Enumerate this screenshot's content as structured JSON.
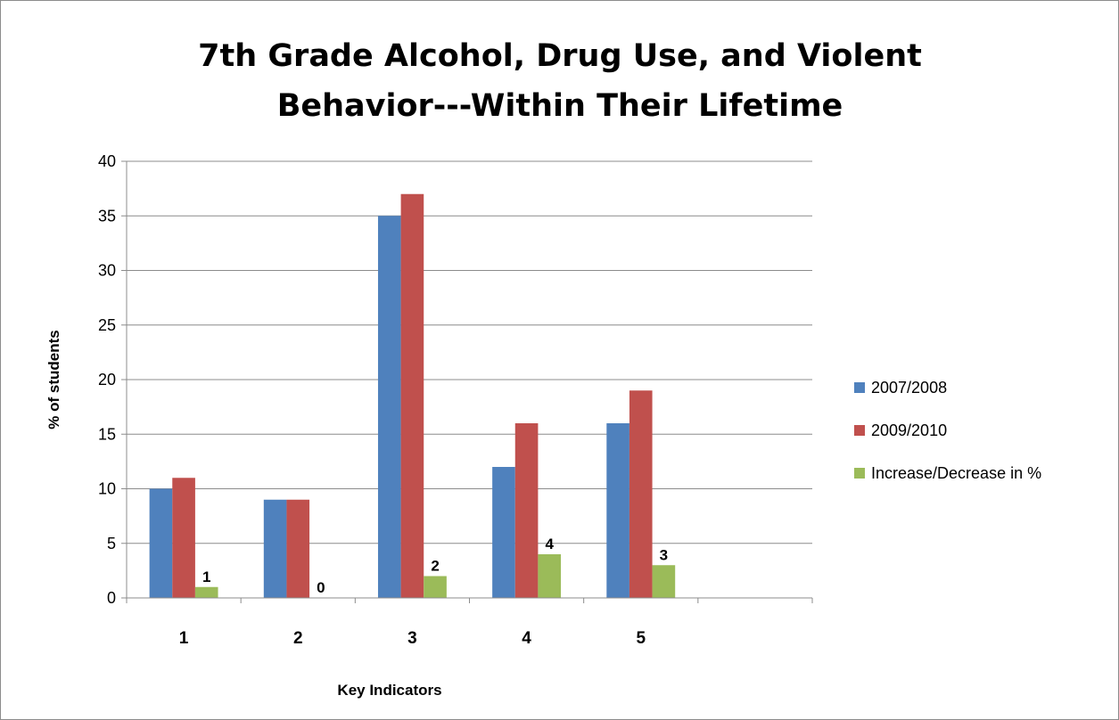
{
  "chart_data": {
    "type": "bar",
    "title_lines": [
      "7th Grade Alcohol, Drug Use, and Violent",
      "Behavior---Within Their Lifetime"
    ],
    "xlabel": "Key Indicators",
    "ylabel": "% of students",
    "ylim": [
      0,
      40
    ],
    "ytick_step": 5,
    "yticks": [
      "0",
      "5",
      "10",
      "15",
      "20",
      "25",
      "30",
      "35",
      "40"
    ],
    "categories": [
      "1",
      "2",
      "3",
      "4",
      "5",
      ""
    ],
    "grid": true,
    "legend_position": "right",
    "series": [
      {
        "name": "2007/2008",
        "color": "#4f81bd",
        "values": [
          10,
          9,
          35,
          12,
          16,
          null
        ]
      },
      {
        "name": "2009/2010",
        "color": "#c0504d",
        "values": [
          11,
          9,
          37,
          16,
          19,
          null
        ]
      },
      {
        "name": "Increase/Decrease in %",
        "color": "#9bbb59",
        "values": [
          1,
          0,
          2,
          4,
          3,
          null
        ],
        "data_labels": [
          "1",
          "0",
          "2",
          "4",
          "3",
          ""
        ]
      }
    ]
  }
}
